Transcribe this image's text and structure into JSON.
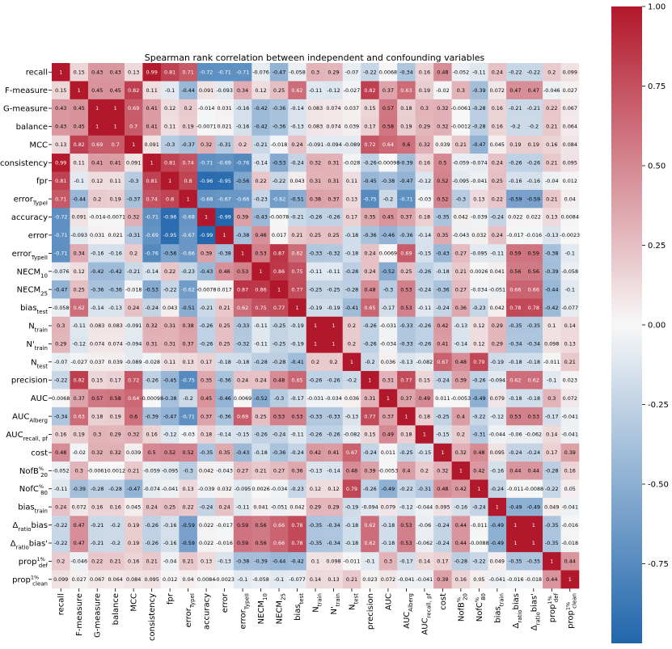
{
  "chart_data": {
    "type": "heatmap",
    "title": "Spearman rank correlation between independent and confounding variables",
    "labels": [
      {
        "base": "recall",
        "sub": "",
        "sup": ""
      },
      {
        "base": "F-measure",
        "sub": "",
        "sup": ""
      },
      {
        "base": "G-measure",
        "sub": "",
        "sup": ""
      },
      {
        "base": "balance",
        "sub": "",
        "sup": ""
      },
      {
        "base": "MCC",
        "sub": "",
        "sup": ""
      },
      {
        "base": "consistency",
        "sub": "",
        "sup": ""
      },
      {
        "base": "fpr",
        "sub": "",
        "sup": ""
      },
      {
        "base": "error",
        "sub": "TypeI",
        "sup": ""
      },
      {
        "base": "accuracy",
        "sub": "",
        "sup": ""
      },
      {
        "base": "error",
        "sub": "",
        "sup": ""
      },
      {
        "base": "error",
        "sub": "TypeII",
        "sup": ""
      },
      {
        "base": "NECM",
        "sub": "10",
        "sup": ""
      },
      {
        "base": "NECM",
        "sub": "25",
        "sup": ""
      },
      {
        "base": "bias",
        "sub": "test",
        "sup": ""
      },
      {
        "base": "N",
        "sub": "train",
        "sup": ""
      },
      {
        "base": "N'",
        "sub": "train",
        "sup": ""
      },
      {
        "base": "N",
        "sub": "test",
        "sup": ""
      },
      {
        "base": "precision",
        "sub": "",
        "sup": ""
      },
      {
        "base": "AUC",
        "sub": "",
        "sup": ""
      },
      {
        "base": "AUC",
        "sub": "Alberg",
        "sup": ""
      },
      {
        "base": "AUC",
        "sub": "recall, pf",
        "sup": ""
      },
      {
        "base": "cost",
        "sub": "",
        "sup": ""
      },
      {
        "base": "NofB",
        "sub": "20",
        "sup": "%"
      },
      {
        "base": "NofC",
        "sub": "80",
        "sup": "%"
      },
      {
        "base": "bias",
        "sub": "train",
        "sup": ""
      },
      {
        "base": "Δ",
        "sub": "ratio",
        "sup": "",
        "tail": "bias"
      },
      {
        "base": "Δ",
        "sub": "ratio",
        "sup": "",
        "tail": "bias'"
      },
      {
        "base": "prop",
        "sub": "def",
        "sup": "1%"
      },
      {
        "base": "prop",
        "sub": "clean",
        "sup": "1%"
      }
    ],
    "matrix": [
      [
        "1",
        "0.15",
        "0.43",
        "0.43",
        "0.13",
        "0.99",
        "0.81",
        "0.71",
        "-0.72",
        "-0.71",
        "-0.71",
        "-0.076",
        "-0.47",
        "-0.058",
        "0.3",
        "0.29",
        "-0.07",
        "-0.22",
        "0.0068",
        "-0.34",
        "0.16",
        "0.48",
        "-0.052",
        "-0.11",
        "0.24",
        "-0.22",
        "-0.22",
        "0.2",
        "0.099"
      ],
      [
        "0.15",
        "1",
        "0.45",
        "0.45",
        "0.82",
        "0.11",
        "-0.1",
        "-0.44",
        "0.091",
        "-0.093",
        "0.34",
        "0.12",
        "0.25",
        "0.62",
        "-0.11",
        "-0.12",
        "-0.027",
        "0.82",
        "0.37",
        "0.63",
        "0.19",
        "-0.02",
        "0.3",
        "-0.39",
        "0.072",
        "0.47",
        "0.47",
        "-0.046",
        "0.027"
      ],
      [
        "0.43",
        "0.45",
        "1",
        "1",
        "0.69",
        "0.41",
        "0.12",
        "0.2",
        "-0.014",
        "0.031",
        "-0.16",
        "-0.42",
        "-0.36",
        "-0.14",
        "0.083",
        "0.074",
        "0.037",
        "0.15",
        "0.57",
        "0.18",
        "0.3",
        "0.32",
        "-0.0061",
        "-0.28",
        "0.16",
        "-0.21",
        "-0.21",
        "0.22",
        "0.067"
      ],
      [
        "0.43",
        "0.45",
        "1",
        "1",
        "0.7",
        "0.41",
        "0.11",
        "0.19",
        "-0.0071",
        "0.021",
        "-0.16",
        "-0.42",
        "-0.36",
        "-0.13",
        "0.083",
        "0.074",
        "0.039",
        "0.17",
        "0.58",
        "0.19",
        "0.29",
        "0.32",
        "-0.0012",
        "-0.28",
        "0.16",
        "-0.2",
        "-0.2",
        "0.21",
        "0.064"
      ],
      [
        "0.13",
        "0.82",
        "0.69",
        "0.7",
        "1",
        "0.091",
        "-0.3",
        "-0.37",
        "0.32",
        "-0.31",
        "0.2",
        "-0.21",
        "-0.018",
        "0.24",
        "-0.091",
        "-0.094",
        "-0.089",
        "0.72",
        "0.64",
        "0.6",
        "0.32",
        "0.039",
        "0.21",
        "-0.47",
        "0.045",
        "0.19",
        "0.19",
        "0.16",
        "0.084"
      ],
      [
        "0.99",
        "0.11",
        "0.41",
        "0.41",
        "0.091",
        "1",
        "0.81",
        "0.74",
        "-0.71",
        "-0.69",
        "-0.76",
        "-0.14",
        "-0.53",
        "-0.24",
        "0.32",
        "0.31",
        "-0.028",
        "-0.26",
        "-0.00098",
        "-0.39",
        "0.16",
        "0.5",
        "-0.059",
        "-0.074",
        "0.24",
        "-0.26",
        "-0.26",
        "0.21",
        "0.095"
      ],
      [
        "0.81",
        "-0.1",
        "0.12",
        "0.11",
        "-0.3",
        "0.81",
        "1",
        "0.8",
        "-0.96",
        "-0.95",
        "-0.56",
        "0.22",
        "-0.22",
        "0.043",
        "0.31",
        "0.31",
        "0.11",
        "-0.45",
        "-0.38",
        "-0.47",
        "-0.12",
        "0.52",
        "-0.095",
        "-0.041",
        "0.25",
        "-0.16",
        "-0.16",
        "-0.04",
        "0.012"
      ],
      [
        "0.71",
        "-0.44",
        "0.2",
        "0.19",
        "-0.37",
        "0.74",
        "0.8",
        "1",
        "-0.68",
        "-0.67",
        "-0.66",
        "-0.23",
        "-0.62",
        "-0.51",
        "0.38",
        "0.37",
        "0.13",
        "-0.75",
        "-0.2",
        "-0.71",
        "-0.03",
        "0.52",
        "-0.3",
        "0.13",
        "0.22",
        "-0.59",
        "-0.59",
        "0.21",
        "0.04"
      ],
      [
        "-0.72",
        "0.091",
        "-0.014",
        "-0.0071",
        "0.32",
        "-0.71",
        "-0.96",
        "-0.68",
        "1",
        "-0.99",
        "0.39",
        "-0.43",
        "-0.0078",
        "-0.21",
        "-0.26",
        "-0.26",
        "0.17",
        "0.35",
        "0.45",
        "0.37",
        "0.18",
        "-0.35",
        "0.042",
        "-0.039",
        "-0.24",
        "0.022",
        "0.022",
        "0.13",
        "0.0084"
      ],
      [
        "-0.71",
        "-0.093",
        "0.031",
        "0.021",
        "-0.31",
        "-0.69",
        "-0.95",
        "-0.67",
        "-0.99",
        "1",
        "-0.38",
        "0.46",
        "0.017",
        "0.21",
        "0.25",
        "0.25",
        "-0.18",
        "-0.36",
        "-0.46",
        "-0.36",
        "-0.14",
        "0.35",
        "-0.043",
        "0.032",
        "0.24",
        "-0.017",
        "-0.016",
        "-0.13",
        "-0.0023"
      ],
      [
        "-0.71",
        "0.34",
        "-0.16",
        "-0.16",
        "0.2",
        "-0.76",
        "-0.56",
        "-0.66",
        "0.39",
        "-0.38",
        "1",
        "0.53",
        "0.87",
        "0.62",
        "-0.33",
        "-0.32",
        "-0.18",
        "0.24",
        "0.0069",
        "0.69",
        "-0.15",
        "-0.43",
        "0.27",
        "-0.095",
        "-0.11",
        "0.59",
        "0.59",
        "-0.38",
        "-0.1"
      ],
      [
        "-0.076",
        "0.12",
        "-0.42",
        "-0.42",
        "-0.21",
        "-0.14",
        "0.22",
        "-0.23",
        "-0.43",
        "0.46",
        "0.53",
        "1",
        "0.86",
        "0.75",
        "-0.11",
        "-0.11",
        "-0.28",
        "0.24",
        "-0.52",
        "0.25",
        "-0.26",
        "-0.18",
        "0.21",
        "0.0026",
        "0.041",
        "0.56",
        "0.56",
        "-0.39",
        "-0.058"
      ],
      [
        "-0.47",
        "0.25",
        "-0.36",
        "-0.36",
        "-0.018",
        "-0.53",
        "-0.22",
        "-0.62",
        "-0.0078",
        "0.017",
        "0.87",
        "0.86",
        "1",
        "0.77",
        "-0.25",
        "-0.25",
        "-0.28",
        "0.48",
        "-0.3",
        "0.53",
        "-0.24",
        "-0.36",
        "0.27",
        "-0.034",
        "-0.051",
        "0.66",
        "0.66",
        "-0.44",
        "-0.1"
      ],
      [
        "-0.058",
        "0.62",
        "-0.14",
        "-0.13",
        "0.24",
        "-0.24",
        "0.043",
        "-0.51",
        "-0.21",
        "0.21",
        "0.62",
        "0.75",
        "0.77",
        "1",
        "-0.19",
        "-0.19",
        "-0.41",
        "0.65",
        "-0.17",
        "0.53",
        "-0.11",
        "-0.24",
        "0.36",
        "-0.23",
        "0.042",
        "0.78",
        "0.78",
        "-0.42",
        "-0.077"
      ],
      [
        "0.3",
        "-0.11",
        "0.083",
        "0.083",
        "-0.091",
        "0.32",
        "0.31",
        "0.38",
        "-0.26",
        "0.25",
        "-0.33",
        "-0.11",
        "-0.25",
        "-0.19",
        "1",
        "1",
        "0.2",
        "-0.26",
        "-0.031",
        "-0.33",
        "-0.26",
        "0.42",
        "-0.13",
        "0.12",
        "0.29",
        "-0.35",
        "-0.35",
        "0.1",
        "0.14"
      ],
      [
        "0.29",
        "-0.12",
        "0.074",
        "0.074",
        "-0.094",
        "0.31",
        "0.31",
        "0.37",
        "-0.26",
        "0.25",
        "-0.32",
        "-0.11",
        "-0.25",
        "-0.19",
        "1",
        "1",
        "0.2",
        "-0.26",
        "-0.034",
        "-0.33",
        "-0.26",
        "0.41",
        "-0.14",
        "0.12",
        "0.29",
        "-0.34",
        "-0.34",
        "0.098",
        "0.13"
      ],
      [
        "-0.07",
        "-0.027",
        "0.037",
        "0.039",
        "-0.089",
        "-0.028",
        "0.11",
        "0.13",
        "0.17",
        "-0.18",
        "-0.18",
        "-0.28",
        "-0.28",
        "-0.41",
        "0.2",
        "0.2",
        "1",
        "-0.2",
        "0.036",
        "-0.13",
        "-0.082",
        "0.67",
        "0.48",
        "0.79",
        "-0.19",
        "-0.18",
        "-0.18",
        "-0.011",
        "0.21"
      ],
      [
        "-0.22",
        "0.82",
        "0.15",
        "0.17",
        "0.72",
        "-0.26",
        "-0.45",
        "-0.75",
        "0.35",
        "-0.36",
        "0.24",
        "0.24",
        "0.48",
        "0.65",
        "-0.26",
        "-0.26",
        "-0.2",
        "1",
        "0.31",
        "0.77",
        "0.15",
        "-0.24",
        "0.39",
        "-0.26",
        "-0.094",
        "0.62",
        "0.62",
        "-0.1",
        "0.023"
      ],
      [
        "0.0068",
        "0.37",
        "0.57",
        "0.58",
        "0.64",
        "-0.00098",
        "-0.38",
        "-0.2",
        "0.45",
        "-0.46",
        "0.0069",
        "-0.52",
        "-0.3",
        "-0.17",
        "-0.031",
        "-0.034",
        "0.036",
        "0.31",
        "1",
        "0.37",
        "0.49",
        "0.011",
        "-0.0053",
        "-0.49",
        "0.079",
        "-0.18",
        "-0.18",
        "0.3",
        "0.072"
      ],
      [
        "-0.34",
        "0.63",
        "0.18",
        "0.19",
        "0.6",
        "-0.39",
        "-0.47",
        "-0.71",
        "0.37",
        "-0.36",
        "0.69",
        "0.25",
        "0.53",
        "0.53",
        "-0.33",
        "-0.33",
        "-0.13",
        "0.77",
        "0.37",
        "1",
        "0.18",
        "-0.25",
        "0.4",
        "-0.22",
        "-0.12",
        "0.53",
        "0.53",
        "-0.17",
        "-0.041"
      ],
      [
        "0.16",
        "0.19",
        "0.3",
        "0.29",
        "0.32",
        "0.16",
        "-0.12",
        "-0.03",
        "0.18",
        "-0.14",
        "-0.15",
        "-0.26",
        "-0.24",
        "-0.11",
        "-0.26",
        "-0.26",
        "-0.082",
        "0.15",
        "0.49",
        "0.18",
        "1",
        "-0.15",
        "0.2",
        "-0.31",
        "-0.044",
        "-0.06",
        "-0.062",
        "0.14",
        "-0.041"
      ],
      [
        "0.48",
        "-0.02",
        "0.32",
        "0.32",
        "0.039",
        "0.5",
        "0.52",
        "0.52",
        "-0.35",
        "0.35",
        "-0.43",
        "-0.18",
        "-0.36",
        "-0.24",
        "0.42",
        "0.41",
        "0.67",
        "-0.24",
        "0.011",
        "-0.25",
        "-0.15",
        "1",
        "0.32",
        "0.48",
        "0.095",
        "-0.24",
        "-0.24",
        "0.17",
        "0.39"
      ],
      [
        "-0.052",
        "0.3",
        "-0.0061",
        "-0.0012",
        "0.21",
        "-0.059",
        "-0.095",
        "-0.3",
        "0.042",
        "-0.043",
        "0.27",
        "0.21",
        "0.27",
        "0.36",
        "-0.13",
        "-0.14",
        "0.48",
        "0.39",
        "-0.0053",
        "0.4",
        "0.2",
        "0.32",
        "1",
        "0.42",
        "-0.16",
        "0.44",
        "0.44",
        "-0.28",
        "0.16"
      ],
      [
        "-0.11",
        "-0.39",
        "-0.28",
        "-0.28",
        "-0.47",
        "-0.074",
        "-0.041",
        "0.13",
        "-0.039",
        "0.032",
        "-0.095",
        "0.0026",
        "-0.034",
        "-0.23",
        "0.12",
        "0.12",
        "0.79",
        "-0.26",
        "-0.49",
        "-0.22",
        "-0.31",
        "0.48",
        "0.42",
        "1",
        "-0.24",
        "-0.011",
        "-0.0088",
        "-0.22",
        "0.05"
      ],
      [
        "0.24",
        "0.072",
        "0.16",
        "0.16",
        "0.045",
        "0.24",
        "0.25",
        "0.22",
        "-0.24",
        "0.24",
        "-0.11",
        "0.041",
        "-0.051",
        "0.042",
        "0.29",
        "0.29",
        "-0.19",
        "-0.094",
        "0.079",
        "-0.12",
        "-0.044",
        "0.095",
        "-0.16",
        "-0.24",
        "1",
        "-0.49",
        "-0.49",
        "0.049",
        "-0.041"
      ],
      [
        "-0.22",
        "0.47",
        "-0.21",
        "-0.2",
        "0.19",
        "-0.26",
        "-0.16",
        "-0.59",
        "0.022",
        "-0.017",
        "0.59",
        "0.56",
        "0.66",
        "0.78",
        "-0.35",
        "-0.34",
        "-0.18",
        "0.62",
        "-0.18",
        "0.53",
        "-0.06",
        "-0.24",
        "0.44",
        "-0.011",
        "-0.49",
        "1",
        "1",
        "-0.35",
        "-0.016"
      ],
      [
        "-0.22",
        "0.47",
        "-0.21",
        "-0.2",
        "0.19",
        "-0.26",
        "-0.16",
        "-0.59",
        "0.022",
        "-0.016",
        "0.59",
        "0.56",
        "0.66",
        "0.78",
        "-0.35",
        "-0.34",
        "-0.18",
        "0.62",
        "-0.18",
        "0.53",
        "-0.062",
        "-0.24",
        "0.44",
        "-0.0088",
        "-0.49",
        "1",
        "1",
        "-0.35",
        "-0.018"
      ],
      [
        "0.2",
        "-0.046",
        "0.22",
        "0.21",
        "0.16",
        "0.21",
        "-0.04",
        "0.21",
        "0.13",
        "-0.13",
        "-0.38",
        "-0.39",
        "-0.44",
        "-0.42",
        "0.1",
        "0.098",
        "-0.011",
        "-0.1",
        "0.3",
        "-0.17",
        "0.14",
        "0.17",
        "-0.28",
        "-0.22",
        "0.049",
        "-0.35",
        "-0.35",
        "1",
        "0.44"
      ],
      [
        "0.099",
        "0.027",
        "0.067",
        "0.064",
        "0.084",
        "0.095",
        "0.012",
        "0.04",
        "0.0084",
        "-0.0023",
        "-0.1",
        "-0.058",
        "-0.1",
        "-0.077",
        "0.14",
        "0.13",
        "0.21",
        "0.023",
        "0.072",
        "-0.041",
        "-0.041",
        "0.39",
        "0.16",
        "0.05",
        "-0.041",
        "-0.016",
        "-0.018",
        "0.44",
        "1"
      ]
    ],
    "colorbar": {
      "range": [
        -1,
        1
      ],
      "ticks": [
        "1.00",
        "0.75",
        "0.50",
        "0.25",
        "0.00",
        "-0.25",
        "-0.50",
        "-0.75"
      ],
      "tick_values": [
        1,
        0.75,
        0.5,
        0.25,
        0,
        -0.25,
        -0.5,
        -0.75
      ],
      "colormap": "blue-white-red (vlag)",
      "colors": {
        "negative": "#2166ac",
        "neutral": "#f7f7f7",
        "positive": "#b2182b"
      }
    },
    "grid": false,
    "legend": "colorbar at right"
  }
}
